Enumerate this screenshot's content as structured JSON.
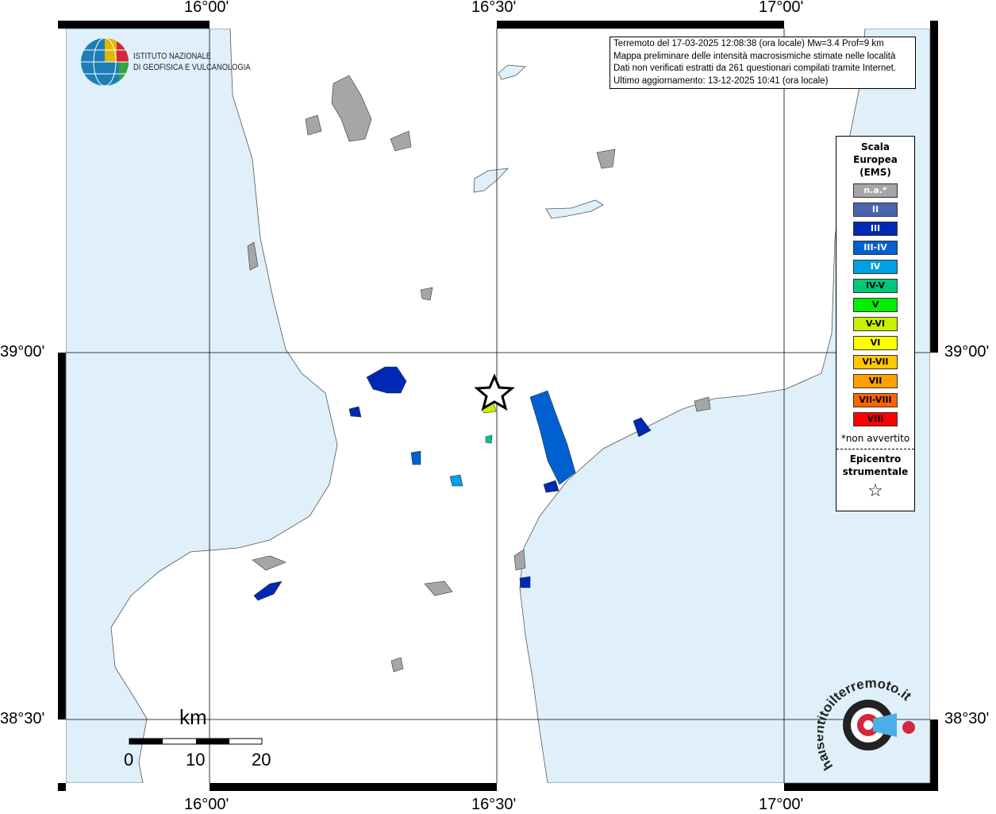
{
  "map": {
    "longitude_labels": [
      "16°00'",
      "16°30'",
      "17°00'"
    ],
    "latitude_labels": [
      "39°00'",
      "38°30'"
    ],
    "colors": {
      "sea": "#dff0fb",
      "land": "#ffffff",
      "locality_na": "#a6a6a6"
    }
  },
  "logo_ingv": {
    "line1": "ISTITUTO NAZIONALE",
    "line2": "DI GEOFISICA E VULCANOLOGIA"
  },
  "info": {
    "line1": "Terremoto del 17-03-2025 12:08:38 (ora locale) Mw=3.4 Prof=9 km",
    "line2": "Mappa preliminare delle intensità macrosismiche stimate nelle località",
    "line3": "Dati non verificati estratti da 261 questionari compilati tramite Internet.",
    "line4": "Ultimo aggiornamento: 13-12-2025 10:41 (ora locale)"
  },
  "legend": {
    "title1": "Scala",
    "title2": "Europea",
    "title3": "(EMS)",
    "items": [
      {
        "label": "n.a.*",
        "color": "#a6a6a6",
        "text": "#ffffff"
      },
      {
        "label": "II",
        "color": "#4a64b0",
        "text": "#ffffff"
      },
      {
        "label": "III",
        "color": "#0028b4",
        "text": "#ffffff"
      },
      {
        "label": "III-IV",
        "color": "#0060d0",
        "text": "#ffffff"
      },
      {
        "label": "IV",
        "color": "#00a0e6",
        "text": "#ffffff"
      },
      {
        "label": "IV-V",
        "color": "#00c878",
        "text": "#000000"
      },
      {
        "label": "V",
        "color": "#00f000",
        "text": "#000000"
      },
      {
        "label": "V-VI",
        "color": "#c8f000",
        "text": "#000000"
      },
      {
        "label": "VI",
        "color": "#ffff00",
        "text": "#000000"
      },
      {
        "label": "VI-VII",
        "color": "#ffc800",
        "text": "#000000"
      },
      {
        "label": "VII",
        "color": "#ffa000",
        "text": "#000000"
      },
      {
        "label": "VII-VIII",
        "color": "#ff6400",
        "text": "#000000"
      },
      {
        "label": "VIII",
        "color": "#ff0000",
        "text": "#000000"
      }
    ],
    "note": "*non avvertito",
    "epicenter1": "Epicentro",
    "epicenter2": "strumentale",
    "epicenter_symbol": "☆"
  },
  "scale_bar": {
    "unit": "km",
    "labels": [
      "0",
      "10",
      "20"
    ]
  },
  "logo_hsit": {
    "text": "haisentitoilterremoto.it",
    "www": "www."
  }
}
